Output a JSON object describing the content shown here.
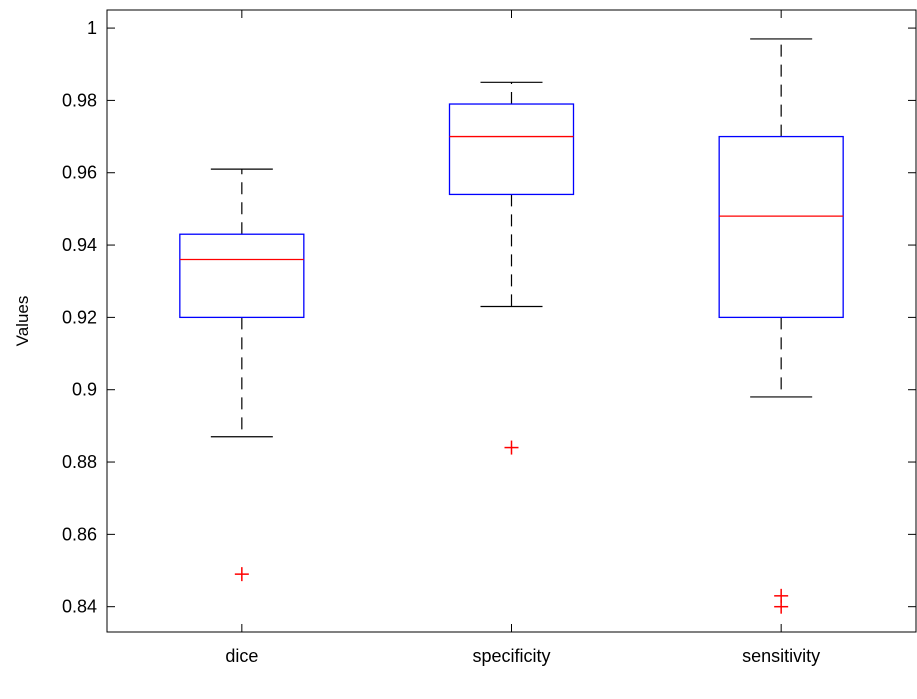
{
  "chart_data": {
    "type": "box",
    "title": "",
    "xlabel": "",
    "ylabel": "Values",
    "ylim": [
      0.833,
      1.005
    ],
    "yticks": [
      0.84,
      0.86,
      0.88,
      0.9,
      0.92,
      0.94,
      0.96,
      0.98,
      1
    ],
    "ytick_labels": [
      "0.84",
      "0.86",
      "0.88",
      "0.9",
      "0.92",
      "0.94",
      "0.96",
      "0.98",
      "1"
    ],
    "categories": [
      "dice",
      "specificity",
      "sensitivity"
    ],
    "boxes": [
      {
        "category": "dice",
        "whisker_low": 0.887,
        "q1": 0.92,
        "median": 0.936,
        "q3": 0.943,
        "whisker_high": 0.961,
        "outliers": [
          0.849
        ]
      },
      {
        "category": "specificity",
        "whisker_low": 0.923,
        "q1": 0.954,
        "median": 0.97,
        "q3": 0.979,
        "whisker_high": 0.985,
        "outliers": [
          0.884
        ]
      },
      {
        "category": "sensitivity",
        "whisker_low": 0.898,
        "q1": 0.92,
        "median": 0.948,
        "q3": 0.97,
        "whisker_high": 0.997,
        "outliers": [
          0.843,
          0.84
        ]
      }
    ],
    "grid": false,
    "legend": "none",
    "colors": {
      "box": "#0000ff",
      "median": "#ff0000",
      "whisker": "#000000",
      "outlier": "#ff0000",
      "axes": "#000000"
    }
  }
}
